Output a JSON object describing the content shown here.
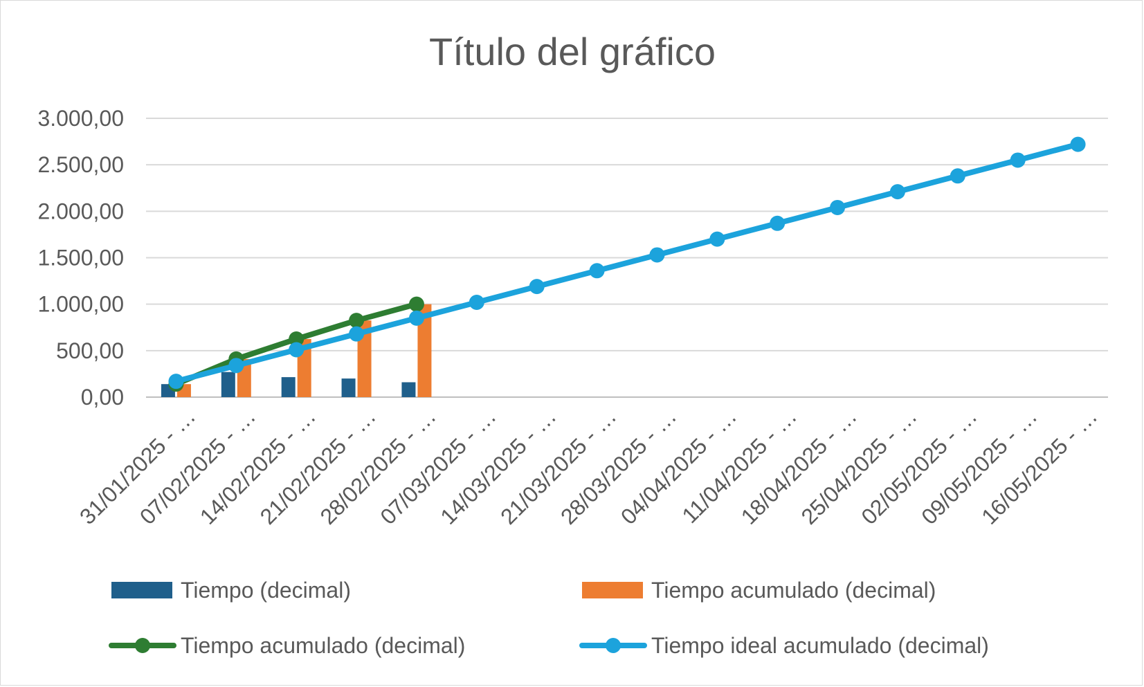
{
  "chart_data": {
    "type": "bar",
    "title": "Título del gráfico",
    "xlabel": "",
    "ylabel": "",
    "ylim": [
      0,
      3000
    ],
    "yticks": [
      "0,00",
      "500,00",
      "1.000,00",
      "1.500,00",
      "2.000,00",
      "2.500,00",
      "3.000,00"
    ],
    "ytick_values": [
      0,
      500,
      1000,
      1500,
      2000,
      2500,
      3000
    ],
    "categories": [
      "31/01/2025 - …",
      "07/02/2025 - …",
      "14/02/2025 - …",
      "21/02/2025 - …",
      "28/02/2025 - …",
      "07/03/2025 - …",
      "14/03/2025 - …",
      "21/03/2025 - …",
      "28/03/2025 - …",
      "04/04/2025 - …",
      "11/04/2025 - …",
      "18/04/2025 - …",
      "25/04/2025 - …",
      "02/05/2025 - …",
      "09/05/2025 - …",
      "16/05/2025 - …"
    ],
    "grid": true,
    "legend_position": "bottom",
    "series": [
      {
        "name": "Tiempo (decimal)",
        "kind": "bar",
        "color": "#1f5f8b",
        "values": [
          140,
          270,
          215,
          200,
          160,
          null,
          null,
          null,
          null,
          null,
          null,
          null,
          null,
          null,
          null,
          null
        ]
      },
      {
        "name": "Tiempo acumulado (decimal)",
        "kind": "bar",
        "color": "#ed7d31",
        "values": [
          140,
          410,
          625,
          825,
          1000,
          null,
          null,
          null,
          null,
          null,
          null,
          null,
          null,
          null,
          null,
          null
        ]
      },
      {
        "name": "Tiempo acumulado (decimal)",
        "kind": "line",
        "color": "#2e7d32",
        "values": [
          140,
          410,
          625,
          825,
          1000,
          null,
          null,
          null,
          null,
          null,
          null,
          null,
          null,
          null,
          null,
          null
        ]
      },
      {
        "name": "Tiempo ideal acumulado (decimal)",
        "kind": "line",
        "color": "#1ca3dc",
        "values": [
          170,
          340,
          510,
          680,
          850,
          1020,
          1190,
          1360,
          1530,
          1700,
          1870,
          2040,
          2210,
          2380,
          2550,
          2720
        ]
      }
    ]
  }
}
